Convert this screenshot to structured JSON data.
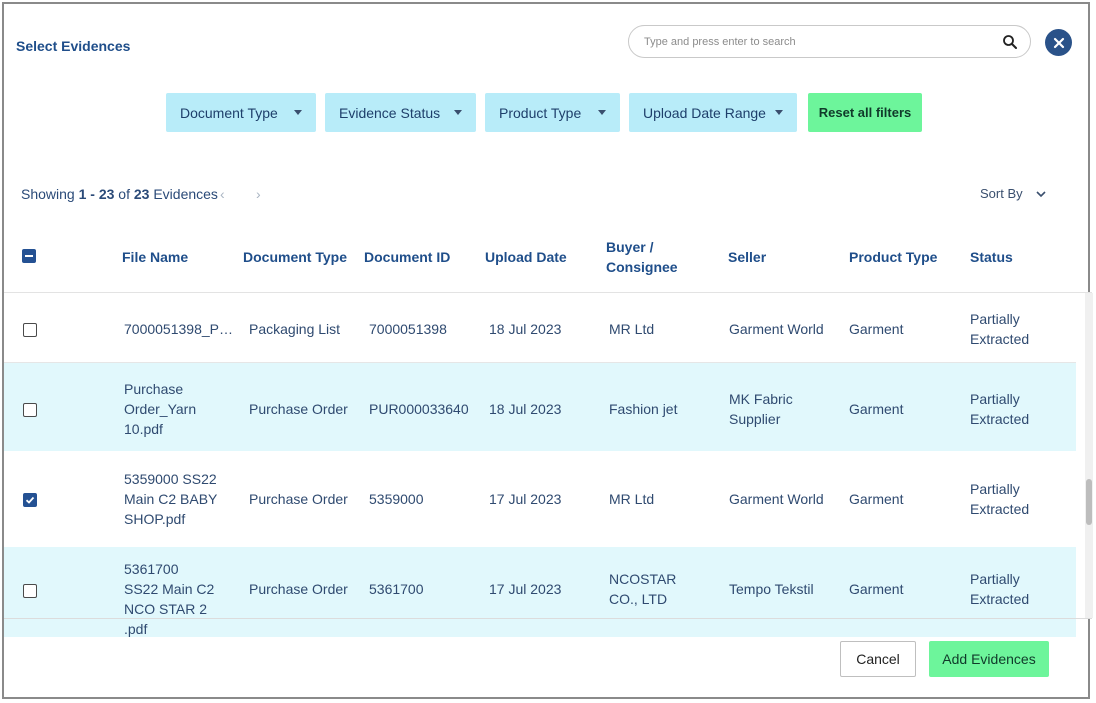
{
  "dialog": {
    "title": "Select Evidences"
  },
  "search": {
    "placeholder": "Type and press enter to search",
    "icon": "search-icon"
  },
  "filters": [
    {
      "label": "Document Type"
    },
    {
      "label": "Evidence Status"
    },
    {
      "label": "Product Type"
    },
    {
      "label": "Upload Date Range"
    }
  ],
  "reset_label": "Reset all filters",
  "summary": {
    "prefix": "Showing",
    "range": "1 - 23",
    "of": "of",
    "total": "23",
    "suffix": "Evidences"
  },
  "pager": {
    "prev": "‹",
    "next": "›"
  },
  "sort": {
    "label": "Sort By"
  },
  "columns": {
    "file_name": "File Name",
    "document_type": "Document Type",
    "document_id": "Document ID",
    "upload_date": "Upload Date",
    "buyer": "Buyer / Consignee",
    "seller": "Seller",
    "product_type": "Product Type",
    "status": "Status"
  },
  "rows": [
    {
      "checked": false,
      "file_name": "7000051398_P…",
      "document_type": "Packaging List",
      "document_id": "7000051398",
      "upload_date": "18 Jul 2023",
      "buyer": "MR Ltd",
      "seller": "Garment World",
      "product_type": "Garment",
      "status": "Partially Extracted"
    },
    {
      "checked": false,
      "file_name": "Purchase Order_Yarn 10.pdf",
      "document_type": "Purchase Order",
      "document_id": "PUR000033640",
      "upload_date": "18 Jul 2023",
      "buyer": "Fashion jet",
      "seller": "MK Fabric Supplier",
      "product_type": "Garment",
      "status": "Partially Extracted"
    },
    {
      "checked": true,
      "file_name": "5359000 SS22 Main C2 BABY SHOP.pdf",
      "document_type": "Purchase Order",
      "document_id": "5359000",
      "upload_date": "17 Jul 2023",
      "buyer": "MR Ltd",
      "seller": "Garment World",
      "product_type": "Garment",
      "status": "Partially Extracted"
    },
    {
      "checked": false,
      "file_name": "5361700 SS22 Main C2 NCO STAR 2 .pdf",
      "document_type": "Purchase Order",
      "document_id": "5361700",
      "upload_date": "17 Jul 2023",
      "buyer": "NCOSTAR CO., LTD",
      "seller": "Tempo Tekstil",
      "product_type": "Garment",
      "status": "Partially Extracted"
    }
  ],
  "footer": {
    "cancel": "Cancel",
    "add": "Add Evidences"
  },
  "colors": {
    "filter_bg": "#b8ecf9",
    "accent_green": "#6df59b",
    "primary_blue": "#245193",
    "row_alt": "#e1f8fc"
  }
}
